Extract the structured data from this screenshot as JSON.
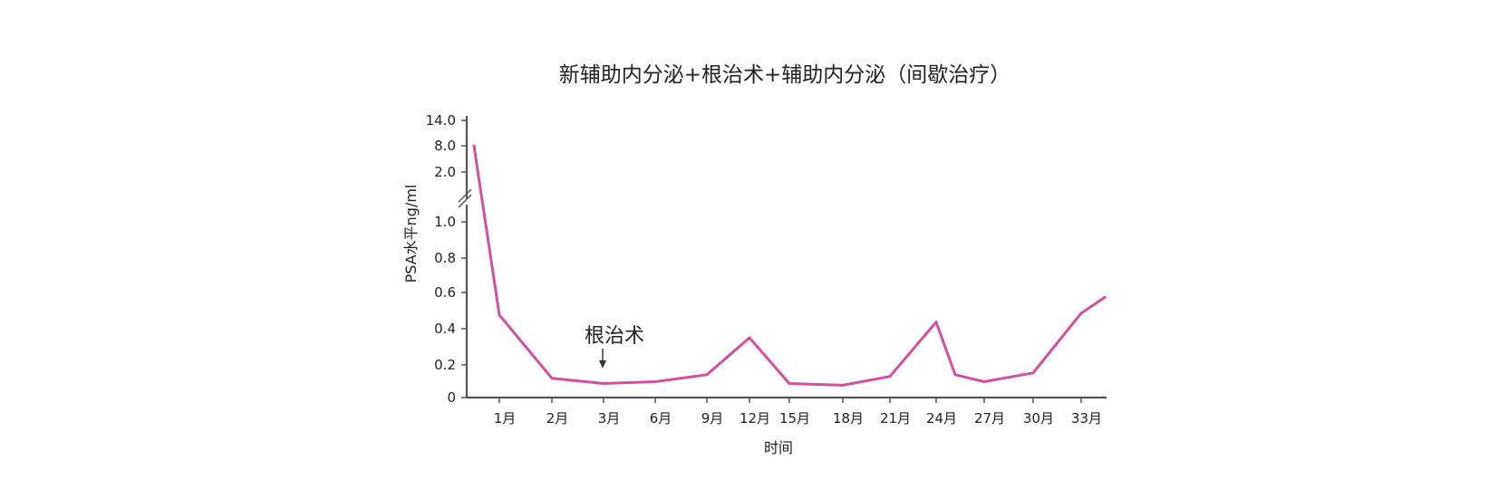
{
  "chart_data": {
    "type": "line",
    "title": "新辅助内分泌+根治术+辅助内分泌（间歇治疗）",
    "xlabel": "时间",
    "ylabel": "PSA水平ng/ml",
    "x_ticks": [
      "1月",
      "2月",
      "3月",
      "6月",
      "9月",
      "12月",
      "15月",
      "18月",
      "21月",
      "24月",
      "27月",
      "30月",
      "33月"
    ],
    "y_ticks": [
      "0",
      "0.2",
      "0.4",
      "0.6",
      "0.8",
      "1.0",
      "2.0",
      "8.0",
      "14.0"
    ],
    "y_axis_break": true,
    "grid": false,
    "series": [
      {
        "color": "#D4509A",
        "points": [
          {
            "x": "start",
            "y": 8.0
          },
          {
            "x": "1月",
            "y": 0.47
          },
          {
            "x": "2月",
            "y": 0.11
          },
          {
            "x": "3月",
            "y": 0.08
          },
          {
            "x": "6月",
            "y": 0.09
          },
          {
            "x": "9月",
            "y": 0.13
          },
          {
            "x": "12月",
            "y": 0.34
          },
          {
            "x": "15月",
            "y": 0.08
          },
          {
            "x": "18月",
            "y": 0.07
          },
          {
            "x": "21月",
            "y": 0.12
          },
          {
            "x": "24月",
            "y": 0.43
          },
          {
            "x": "25月",
            "y": 0.13
          },
          {
            "x": "27月",
            "y": 0.09
          },
          {
            "x": "30月",
            "y": 0.14
          },
          {
            "x": "33月",
            "y": 0.48
          },
          {
            "x": "end",
            "y": 0.57
          }
        ]
      }
    ],
    "annotations": [
      {
        "text": "根治术",
        "x": "3月",
        "arrow": "down"
      }
    ]
  }
}
